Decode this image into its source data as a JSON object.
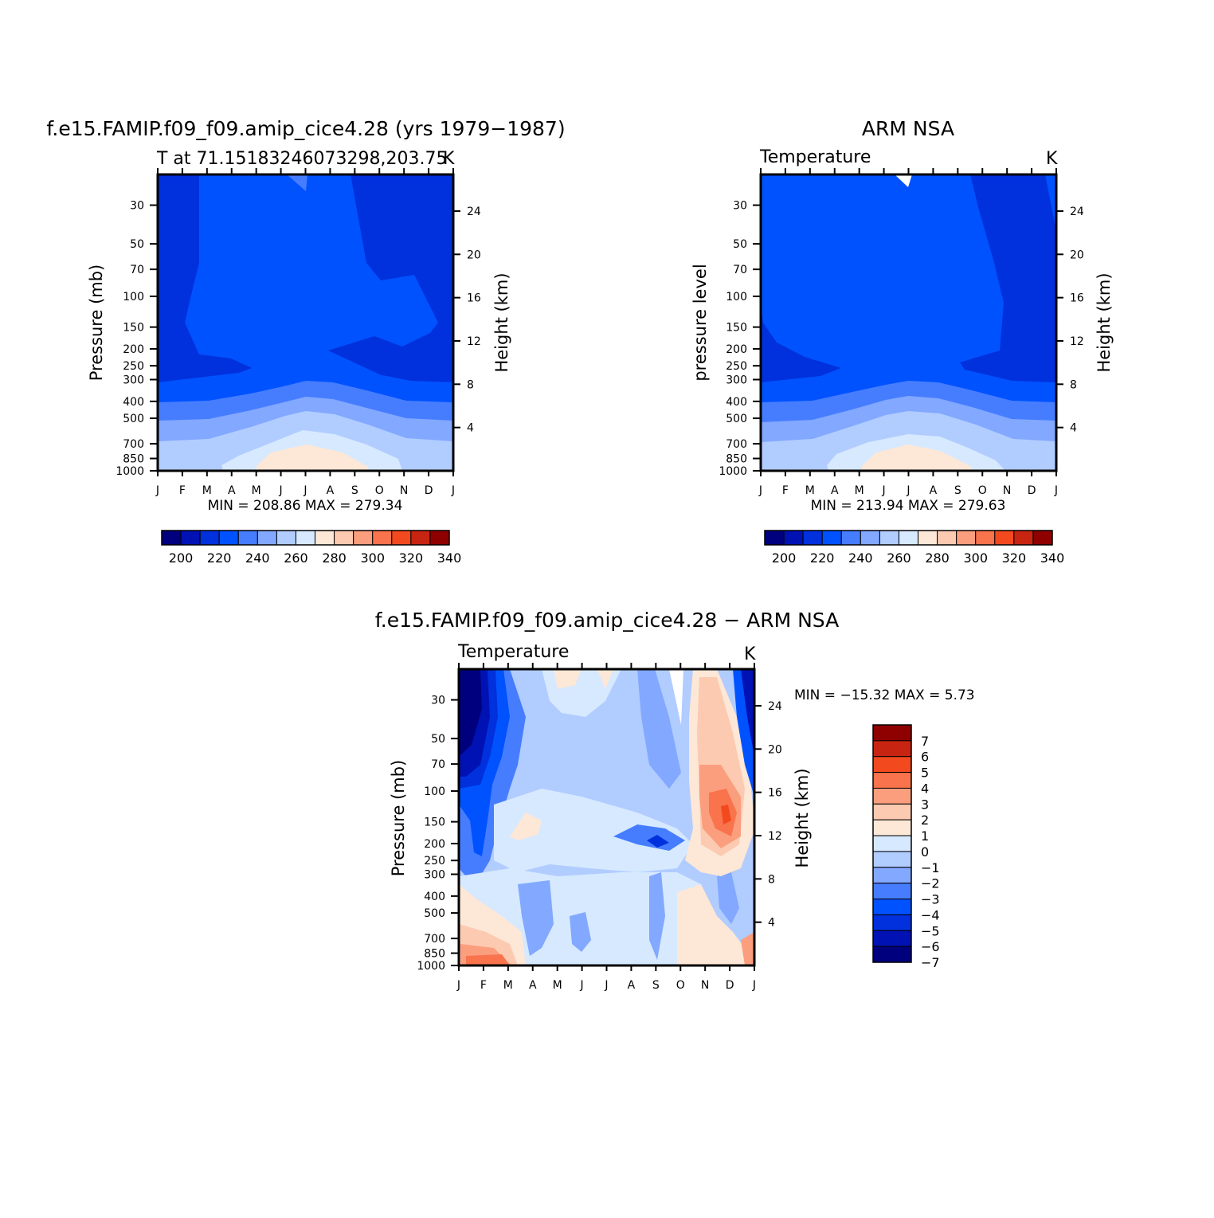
{
  "palette": {
    "temperature": [
      "#00007f",
      "#0012b4",
      "#0031dc",
      "#0052ff",
      "#467dff",
      "#82a8ff",
      "#b1ccff",
      "#d6e9ff",
      "#fde7d6",
      "#fccab1",
      "#fb9e7e",
      "#f9734c",
      "#f24a1e",
      "#c72511",
      "#8f0000"
    ],
    "difference": [
      "#00007f",
      "#0012b4",
      "#0031dc",
      "#0052ff",
      "#467dff",
      "#82a8ff",
      "#b1ccff",
      "#d6e9ff",
      "#fde7d6",
      "#fccab1",
      "#fb9e7e",
      "#f9734c",
      "#f24a1e",
      "#c72511",
      "#8f0000"
    ]
  },
  "panels": [
    {
      "title": "f.e15.FAMIP.f09_f09.amip_cice4.28 (yrs 1979−1987)",
      "subtitle": "T at 71.15183246073298,203.75",
      "units": "K",
      "ylabel_left": "Pressure (mb)",
      "ylabel_right": "Height (km)",
      "minmax": "MIN = 208.86 MAX = 279.34"
    },
    {
      "title": "ARM NSA",
      "subtitle": "Temperature",
      "units": "K",
      "ylabel_left": "pressure level",
      "ylabel_right": "Height (km)",
      "minmax": "MIN = 213.94 MAX = 279.63"
    },
    {
      "title": "f.e15.FAMIP.f09_f09.amip_cice4.28 − ARM NSA",
      "subtitle": "Temperature",
      "units": "K",
      "ylabel_left": "Pressure (mb)",
      "ylabel_right": "Height (km)",
      "minmax": "MIN = −15.32 MAX =    5.73"
    }
  ],
  "chart_data": [
    {
      "type": "heatmap",
      "title": "f.e15.FAMIP.f09_f09.amip_cice4.28 (yrs 1979−1987)",
      "subtitle": "T at 71.15183246073298,203.75",
      "units": "K",
      "x_ticks": [
        "J",
        "F",
        "M",
        "A",
        "M",
        "J",
        "J",
        "A",
        "S",
        "O",
        "N",
        "D",
        "J"
      ],
      "y_pressure_ticks": [
        30,
        50,
        70,
        100,
        150,
        200,
        250,
        300,
        400,
        500,
        700,
        850,
        1000
      ],
      "y_height_ticks": [
        24,
        20,
        16,
        12,
        8,
        4
      ],
      "ylabel": "Pressure (mb)",
      "ylabel_right": "Height (km)",
      "min": 208.86,
      "max": 279.34,
      "colorbar_labels": [
        "200",
        "220",
        "240",
        "260",
        "280",
        "300",
        "320",
        "340"
      ]
    },
    {
      "type": "heatmap",
      "title": "ARM NSA",
      "subtitle": "Temperature",
      "units": "K",
      "x_ticks": [
        "J",
        "F",
        "M",
        "A",
        "M",
        "J",
        "J",
        "A",
        "S",
        "O",
        "N",
        "D",
        "J"
      ],
      "y_pressure_ticks": [
        30,
        50,
        70,
        100,
        150,
        200,
        250,
        300,
        400,
        500,
        700,
        850,
        1000
      ],
      "y_height_ticks": [
        24,
        20,
        16,
        12,
        8,
        4
      ],
      "ylabel": "pressure level",
      "ylabel_right": "Height (km)",
      "min": 213.94,
      "max": 279.63,
      "colorbar_labels": [
        "200",
        "220",
        "240",
        "260",
        "280",
        "300",
        "320",
        "340"
      ]
    },
    {
      "type": "heatmap",
      "title": "f.e15.FAMIP.f09_f09.amip_cice4.28 − ARM NSA",
      "subtitle": "Temperature",
      "units": "K",
      "x_ticks": [
        "J",
        "F",
        "M",
        "A",
        "M",
        "J",
        "J",
        "A",
        "S",
        "O",
        "N",
        "D",
        "J"
      ],
      "y_pressure_ticks": [
        30,
        50,
        70,
        100,
        150,
        200,
        250,
        300,
        400,
        500,
        700,
        850,
        1000
      ],
      "y_height_ticks": [
        24,
        20,
        16,
        12,
        8,
        4
      ],
      "ylabel": "Pressure (mb)",
      "ylabel_right": "Height (km)",
      "min": -15.32,
      "max": 5.73,
      "colorbar_labels": [
        "7",
        "6",
        "5",
        "4",
        "3",
        "2",
        "1",
        "0",
        "−1",
        "−2",
        "−3",
        "−4",
        "−5",
        "−6",
        "−7"
      ]
    }
  ]
}
